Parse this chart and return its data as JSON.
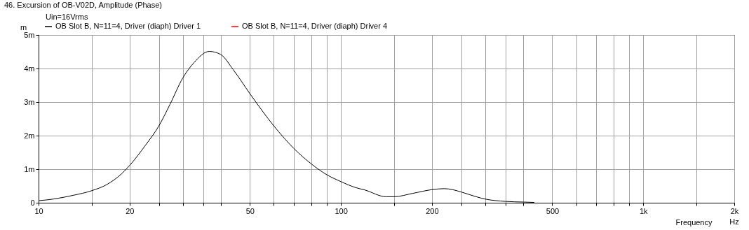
{
  "chart_data": {
    "type": "line",
    "title": "46. Excursion of OB-V02D, Amplitude (Phase)",
    "xlabel": "Frequency",
    "ylabel": "m",
    "annotations": [
      "Uin=16Vrms",
      "Hz"
    ],
    "xlim": [
      10,
      2000
    ],
    "ylim": [
      0,
      5
    ],
    "log": "x",
    "grid": true,
    "legend": "top",
    "line_style": "solid",
    "xticks": [
      10,
      {
        "value": 15,
        "label": null
      },
      20,
      {
        "value": 25,
        "label": null
      },
      {
        "value": 30,
        "label": null
      },
      {
        "value": 35,
        "label": null
      },
      {
        "value": 40,
        "label": null
      },
      50,
      {
        "value": 60,
        "label": null
      },
      {
        "value": 70,
        "label": null
      },
      {
        "value": 80,
        "label": null
      },
      {
        "value": 90,
        "label": null
      },
      100,
      {
        "value": 150,
        "label": null
      },
      200,
      {
        "value": 250,
        "label": null
      },
      {
        "value": 300,
        "label": null
      },
      {
        "value": 350,
        "label": null
      },
      {
        "value": 400,
        "label": null
      },
      500,
      {
        "value": 600,
        "label": null
      },
      {
        "value": 700,
        "label": null
      },
      {
        "value": 800,
        "label": null
      },
      {
        "value": 900,
        "label": null
      },
      {
        "value": 1000,
        "label": "1k"
      },
      {
        "value": 1500,
        "label": null
      },
      {
        "value": 2000,
        "label": "2k"
      }
    ],
    "yticks": [
      0,
      {
        "value": 1,
        "label": "1m"
      },
      {
        "value": 2,
        "label": "2m"
      },
      {
        "value": 3,
        "label": "3m"
      },
      {
        "value": 4,
        "label": "4m"
      },
      {
        "value": 5,
        "label": "5m"
      }
    ],
    "series": [
      {
        "name": "OB Slot B, N=11=4, Driver (diaph) Driver 1",
        "color": "#000000",
        "x": [
          10,
          11.2,
          13,
          15,
          16.8,
          18.8,
          20,
          22.6,
          25,
          27.2,
          30,
          32.7,
          36.7,
          40,
          44,
          50,
          60,
          70,
          80,
          90,
          100,
          112,
          120,
          141,
          150,
          173,
          200,
          220,
          234,
          250,
          280,
          300,
          350,
          402,
          436
        ],
        "values": [
          0.06,
          0.11,
          0.22,
          0.36,
          0.54,
          0.86,
          1.11,
          1.72,
          2.29,
          2.93,
          3.72,
          4.18,
          4.51,
          4.42,
          3.97,
          3.25,
          2.29,
          1.61,
          1.15,
          0.83,
          0.63,
          0.45,
          0.38,
          0.18,
          0.18,
          0.28,
          0.39,
          0.42,
          0.39,
          0.32,
          0.18,
          0.11,
          0.04,
          0.02,
          0.01
        ]
      },
      {
        "name": "OB Slot B, N=11=4, Driver (diaph) Driver 4",
        "color": "#ff0000",
        "values": [
          null
        ]
      }
    ]
  }
}
